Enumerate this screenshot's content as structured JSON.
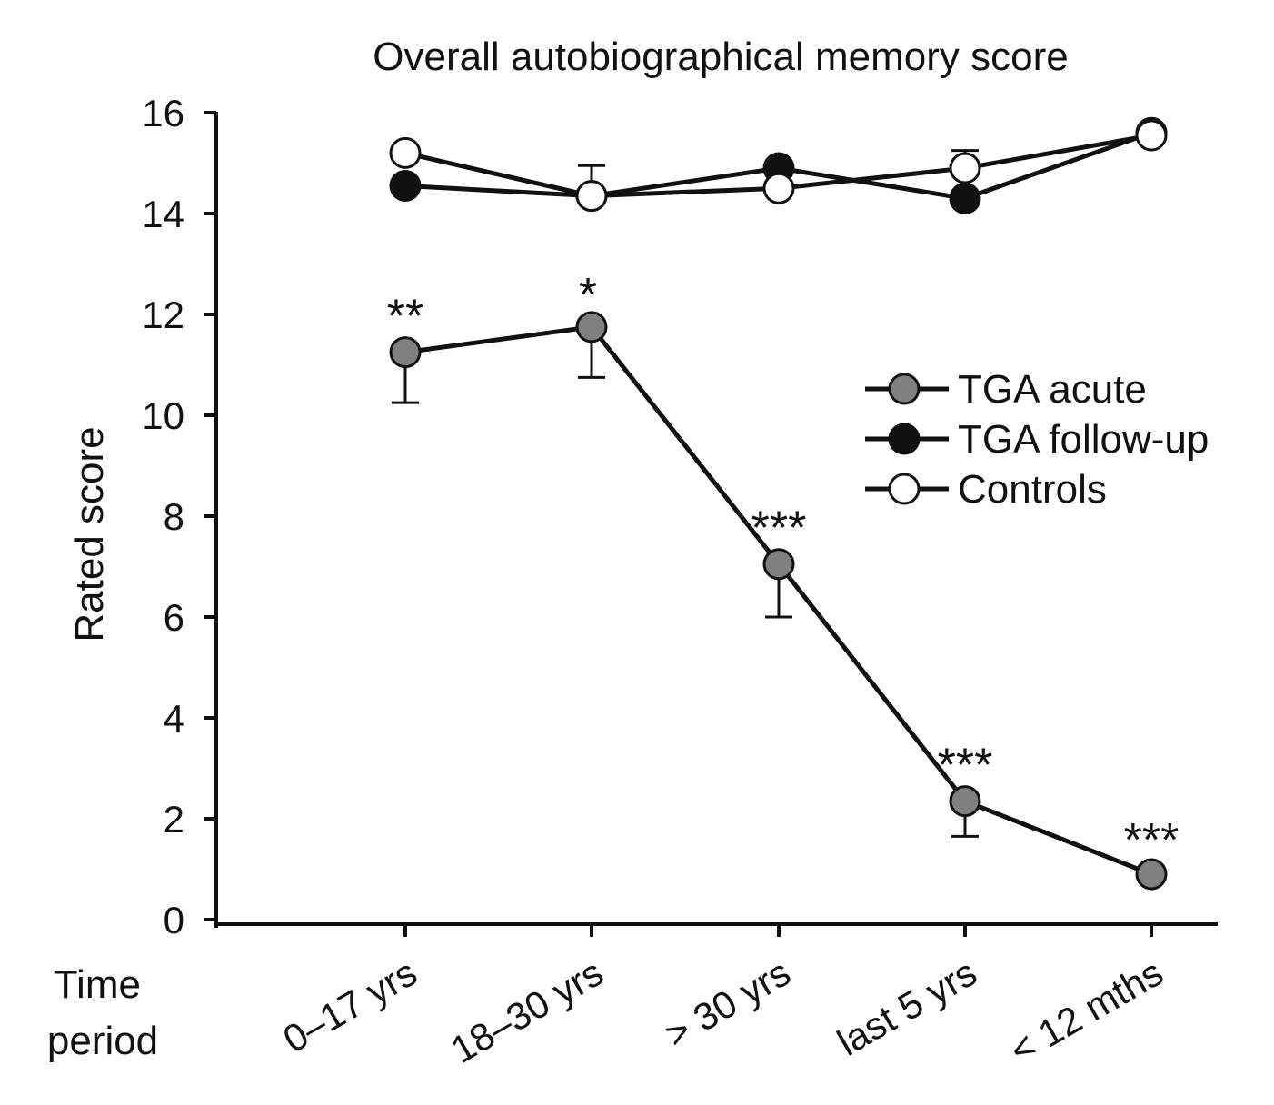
{
  "chart_data": {
    "type": "line",
    "title": "Overall autobiographical memory score",
    "ylabel": "Rated score",
    "xlabel": "Time\nperiod",
    "ylim": [
      0,
      16
    ],
    "yticks": [
      0,
      2,
      4,
      6,
      8,
      10,
      12,
      14,
      16
    ],
    "categories": [
      "0–17 yrs",
      "18–30 yrs",
      "> 30 yrs",
      "last 5 yrs",
      "< 12 mths"
    ],
    "legend_position": "right",
    "series": [
      {
        "name": "TGA acute",
        "color": "#808080",
        "values": [
          11.25,
          11.75,
          7.05,
          2.35,
          0.9
        ],
        "error": [
          1.0,
          1.0,
          1.05,
          0.7,
          null
        ],
        "significance": [
          "**",
          "*",
          "***",
          "***",
          "***"
        ]
      },
      {
        "name": "TGA follow-up",
        "color": "#111111",
        "values": [
          14.55,
          14.35,
          14.9,
          14.3,
          15.6
        ],
        "error": [
          null,
          null,
          null,
          null,
          null
        ]
      },
      {
        "name": "Controls",
        "color": "#ffffff",
        "values": [
          15.2,
          14.35,
          14.5,
          14.9,
          15.55
        ],
        "error": [
          null,
          0.6,
          null,
          0.35,
          null
        ]
      }
    ]
  }
}
